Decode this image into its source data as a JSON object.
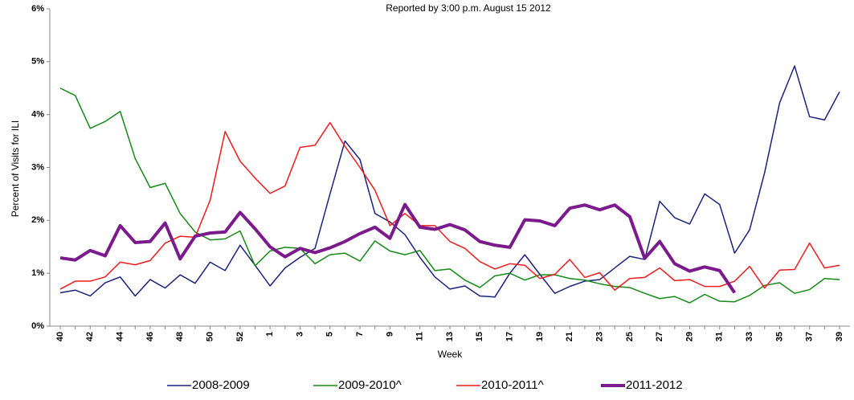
{
  "chart_data": {
    "type": "line",
    "subtitle": "Reported by 3:00 p.m. August 15 2012",
    "y_label": "Percent of Visits for ILI",
    "x_label": "Week",
    "categories": [
      "40",
      null,
      "42",
      null,
      "44",
      null,
      "46",
      null,
      "48",
      null,
      "50",
      null,
      "52",
      null,
      "1",
      null,
      "3",
      null,
      "5",
      null,
      "7",
      null,
      "9",
      null,
      "11",
      null,
      "13",
      null,
      "15",
      null,
      "17",
      null,
      "19",
      null,
      "21",
      null,
      "23",
      null,
      "25",
      null,
      "27",
      null,
      "29",
      null,
      "31",
      null,
      "33",
      null,
      "35",
      null,
      "37",
      null,
      "39"
    ],
    "ylim": [
      0,
      6
    ],
    "yticks": [
      {
        "value": 0,
        "label": "0%"
      },
      {
        "value": 1,
        "label": "1%"
      },
      {
        "value": 2,
        "label": "2%"
      },
      {
        "value": 3,
        "label": "3%"
      },
      {
        "value": 4,
        "label": "4%"
      },
      {
        "value": 5,
        "label": "5%"
      },
      {
        "value": 6,
        "label": "6%"
      }
    ],
    "series": [
      {
        "name": "2008-2009",
        "color": "#1a237e",
        "line_width": 1.5,
        "values": [
          0.63,
          0.68,
          0.57,
          0.82,
          0.93,
          0.57,
          0.88,
          0.72,
          0.97,
          0.81,
          1.21,
          1.05,
          1.53,
          1.15,
          0.76,
          1.1,
          1.3,
          1.47,
          2.5,
          3.5,
          3.15,
          2.13,
          1.97,
          1.73,
          1.3,
          0.93,
          0.7,
          0.76,
          0.57,
          0.55,
          1.0,
          1.35,
          0.98,
          0.62,
          0.75,
          0.85,
          0.88,
          1.1,
          1.32,
          1.26,
          2.36,
          2.05,
          1.93,
          2.5,
          2.3,
          1.38,
          1.82,
          2.9,
          4.22,
          4.92,
          3.96,
          3.9,
          4.43
        ]
      },
      {
        "name": "2009-2010^",
        "color": "#168a16",
        "line_width": 1.5,
        "values": [
          4.5,
          4.36,
          3.74,
          3.87,
          4.06,
          3.17,
          2.62,
          2.7,
          2.13,
          1.78,
          1.63,
          1.65,
          1.8,
          1.14,
          1.42,
          1.49,
          1.47,
          1.18,
          1.35,
          1.38,
          1.23,
          1.61,
          1.42,
          1.35,
          1.43,
          1.05,
          1.08,
          0.87,
          0.73,
          0.95,
          1.0,
          0.87,
          0.97,
          0.97,
          0.9,
          0.87,
          0.8,
          0.75,
          0.73,
          0.62,
          0.52,
          0.56,
          0.44,
          0.6,
          0.47,
          0.46,
          0.58,
          0.77,
          0.82,
          0.62,
          0.69,
          0.9,
          0.88
        ]
      },
      {
        "name": "2010-2011^",
        "color": "#ee1c1c",
        "line_width": 1.5,
        "values": [
          0.7,
          0.85,
          0.85,
          0.93,
          1.21,
          1.16,
          1.24,
          1.57,
          1.7,
          1.68,
          2.38,
          3.68,
          3.12,
          2.8,
          2.51,
          2.65,
          3.38,
          3.42,
          3.85,
          3.4,
          3.0,
          2.57,
          1.9,
          2.13,
          1.9,
          1.9,
          1.6,
          1.47,
          1.22,
          1.08,
          1.18,
          1.15,
          0.9,
          0.98,
          1.26,
          0.92,
          1.01,
          0.68,
          0.9,
          0.92,
          1.1,
          0.86,
          0.88,
          0.75,
          0.75,
          0.85,
          1.13,
          0.72,
          1.06,
          1.07,
          1.57,
          1.1,
          1.15
        ]
      },
      {
        "name": "2011-2012",
        "color": "#7b1a8c",
        "line_width": 4,
        "values": [
          1.29,
          1.25,
          1.43,
          1.33,
          1.9,
          1.58,
          1.6,
          1.95,
          1.27,
          1.7,
          1.76,
          1.78,
          2.15,
          1.84,
          1.5,
          1.31,
          1.47,
          1.39,
          1.48,
          1.6,
          1.75,
          1.87,
          1.66,
          2.3,
          1.87,
          1.83,
          1.92,
          1.82,
          1.6,
          1.53,
          1.49,
          2.01,
          1.99,
          1.9,
          2.23,
          2.29,
          2.2,
          2.29,
          2.07,
          1.28,
          1.6,
          1.18,
          1.04,
          1.12,
          1.05,
          0.63,
          null,
          null,
          null,
          null,
          null,
          null,
          null
        ]
      }
    ]
  }
}
